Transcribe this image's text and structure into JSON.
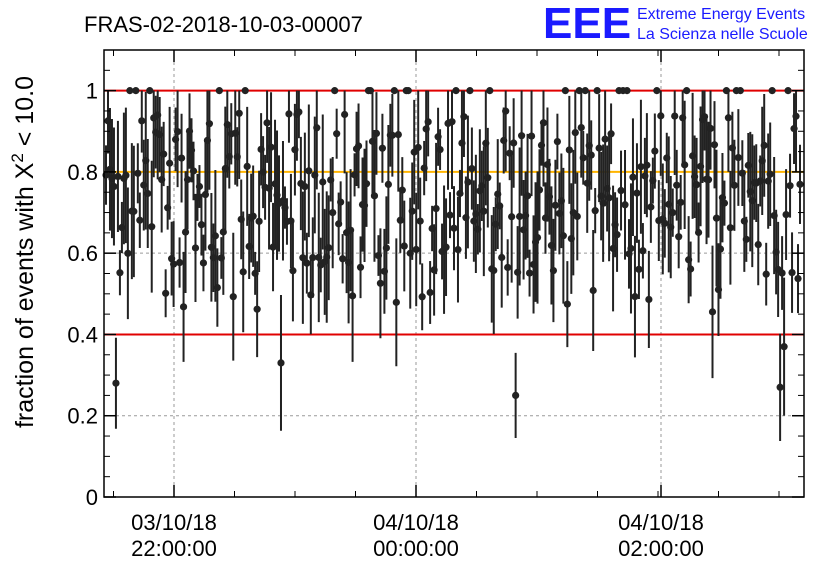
{
  "chart_data": {
    "type": "scatter",
    "title": "FRAS-02-2018-10-03-00007",
    "ylabel": "fraction of events with X",
    "ylabel_sup": "2",
    "ylabel_tail": " < 10.0",
    "ylim": [
      0,
      1.1
    ],
    "y_ticks": [
      "0",
      "0.2",
      "0.4",
      "0.6",
      "0.8",
      "1"
    ],
    "x_ticks": [
      {
        "date": "03/10/18",
        "time": "22:00:00"
      },
      {
        "date": "04/10/18",
        "time": "00:00:00"
      },
      {
        "date": "04/10/18",
        "time": "02:00:00"
      }
    ],
    "reference_lines": [
      {
        "y": 1.0,
        "color": "#e00000"
      },
      {
        "y": 0.8,
        "color": "#ffb400"
      },
      {
        "y": 0.4,
        "color": "#e00000"
      }
    ],
    "grid": true,
    "marker_color": "#222222",
    "n_points": 350,
    "outliers": [
      {
        "index": 5,
        "y": 0.28
      },
      {
        "index": 88,
        "y": 0.33
      },
      {
        "index": 206,
        "y": 0.25
      },
      {
        "index": 339,
        "y": 0.27
      },
      {
        "index": 341,
        "y": 0.37
      }
    ]
  },
  "logo": {
    "mark": "EEE",
    "line1": "Extreme Energy Events",
    "line2": "La Scienza nelle Scuole"
  }
}
